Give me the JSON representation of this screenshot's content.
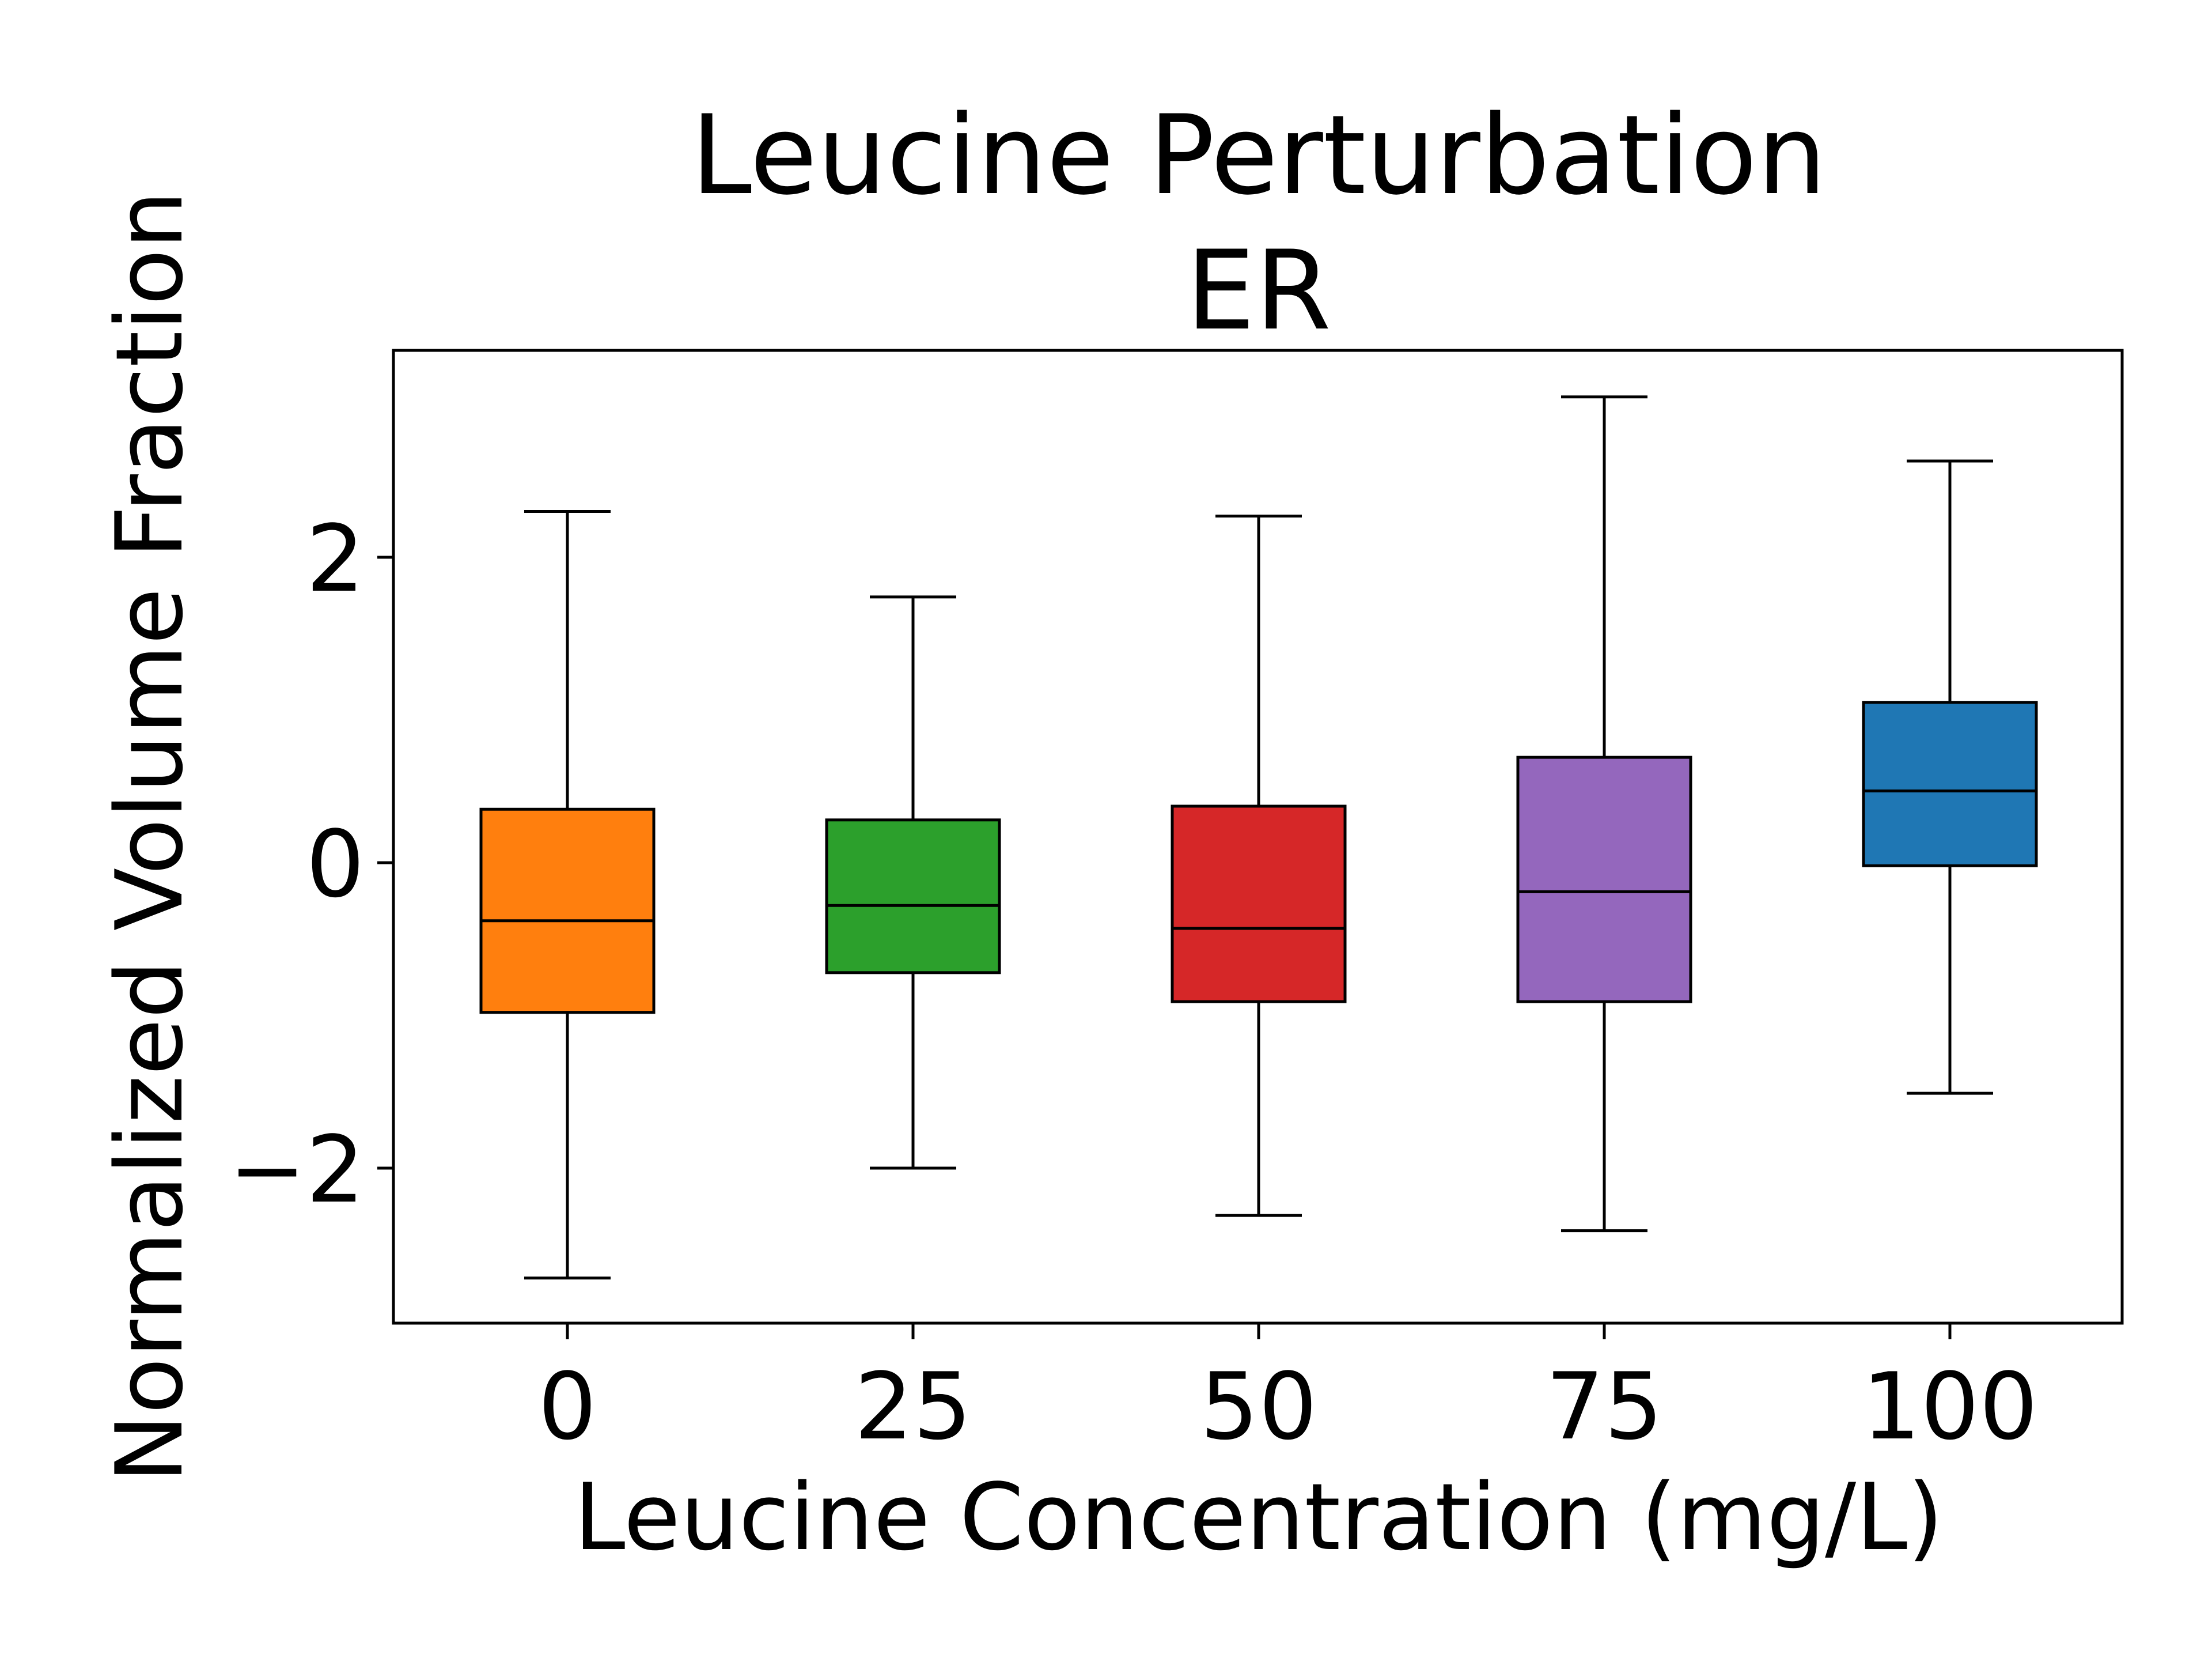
{
  "chart_data": {
    "type": "box",
    "title": "Leucine Perturbation",
    "subtitle": "ER",
    "xlabel": "Leucine Concentration (mg/L)",
    "ylabel": "Normalized Volume Fraction",
    "ylim": [
      -3.0,
      3.35
    ],
    "yticks": [
      -2,
      0,
      2
    ],
    "ytick_labels": [
      "−2",
      "0",
      "2"
    ],
    "grid": false,
    "legend": "none",
    "categories": [
      "0",
      "25",
      "50",
      "75",
      "100"
    ],
    "boxes": [
      {
        "category": "0",
        "whisker_low": -2.72,
        "q1": -0.98,
        "median": -0.38,
        "q3": 0.35,
        "whisker_high": 2.3,
        "color": "#ff7f0e"
      },
      {
        "category": "25",
        "whisker_low": -2.0,
        "q1": -0.72,
        "median": -0.28,
        "q3": 0.28,
        "whisker_high": 1.74,
        "color": "#2ca02c"
      },
      {
        "category": "50",
        "whisker_low": -2.31,
        "q1": -0.91,
        "median": -0.43,
        "q3": 0.37,
        "whisker_high": 2.27,
        "color": "#d62728"
      },
      {
        "category": "75",
        "whisker_low": -2.41,
        "q1": -0.91,
        "median": -0.19,
        "q3": 0.69,
        "whisker_high": 3.05,
        "color": "#9467bd"
      },
      {
        "category": "100",
        "whisker_low": -1.51,
        "q1": -0.02,
        "median": 0.47,
        "q3": 1.05,
        "whisker_high": 2.63,
        "color": "#1f77b4"
      }
    ]
  }
}
